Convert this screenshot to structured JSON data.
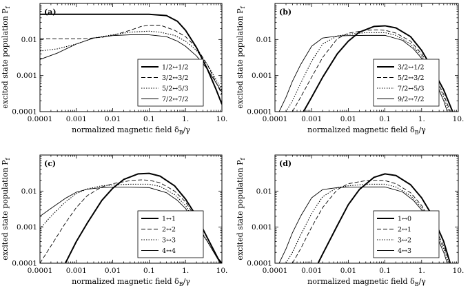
{
  "chart_data": [
    {
      "type": "line",
      "panel_label": "(a)",
      "xlabel_main": "normalized magnetic field δ",
      "xlabel_sub": "B",
      "xlabel_tail": "/γ",
      "ylabel_main": "excited state population P",
      "ylabel_sub": "f",
      "xscale": "log",
      "yscale": "log",
      "xlim": [
        0.0001,
        10
      ],
      "ylim": [
        0.0001,
        0.1
      ],
      "xticks": [
        "0.0001",
        "0.001",
        "0.01",
        "0.1",
        "1.",
        "10."
      ],
      "yticks": [
        "0.0001",
        "0.001",
        "0.01"
      ],
      "legend_position": "lower-center",
      "series": [
        {
          "name": "1/2↔1/2",
          "style": "thick-solid",
          "x": [
            0.0001,
            0.001,
            0.01,
            0.1,
            0.3,
            0.6,
            1,
            2,
            4,
            7,
            10
          ],
          "y": [
            0.05,
            0.05,
            0.05,
            0.05,
            0.046,
            0.032,
            0.018,
            0.006,
            0.0015,
            0.0004,
            0.00016
          ]
        },
        {
          "name": "3/2↔3/2",
          "style": "dashed",
          "x": [
            0.0001,
            0.001,
            0.002,
            0.005,
            0.01,
            0.03,
            0.06,
            0.1,
            0.2,
            0.5,
            1,
            2,
            4,
            10
          ],
          "y": [
            0.0105,
            0.0105,
            0.0107,
            0.0115,
            0.013,
            0.018,
            0.023,
            0.025,
            0.025,
            0.018,
            0.012,
            0.006,
            0.002,
            0.0003
          ]
        },
        {
          "name": "5/2↔5/3",
          "style": "dotted",
          "x": [
            0.0001,
            0.0003,
            0.001,
            0.003,
            0.01,
            0.03,
            0.1,
            0.2,
            0.5,
            1,
            2,
            4,
            10
          ],
          "y": [
            0.0048,
            0.0055,
            0.0075,
            0.011,
            0.0135,
            0.016,
            0.017,
            0.016,
            0.013,
            0.009,
            0.005,
            0.002,
            0.0004
          ]
        },
        {
          "name": "7/2↔7/2",
          "style": "thin-solid",
          "x": [
            0.0001,
            0.0003,
            0.001,
            0.003,
            0.01,
            0.03,
            0.1,
            0.3,
            0.6,
            1,
            2,
            4,
            10
          ],
          "y": [
            0.0028,
            0.0042,
            0.0075,
            0.011,
            0.0128,
            0.0135,
            0.0135,
            0.012,
            0.009,
            0.0065,
            0.0035,
            0.0015,
            0.00035
          ]
        }
      ]
    },
    {
      "type": "line",
      "panel_label": "(b)",
      "xlabel_main": "normalized magnetic field δ",
      "xlabel_sub": "B",
      "xlabel_tail": "/γ",
      "ylabel_main": "excited state population P",
      "ylabel_sub": "f",
      "xscale": "log",
      "yscale": "log",
      "xlim": [
        0.0001,
        10
      ],
      "ylim": [
        0.0001,
        0.1
      ],
      "xticks": [
        "0.0001",
        "0.001",
        "0.01",
        "0.1",
        "1.",
        "10."
      ],
      "yticks": [
        "0.0001",
        "0.001",
        "0.01"
      ],
      "legend_position": "lower-center",
      "series": [
        {
          "name": "3/2↔1/2",
          "style": "thick-solid",
          "x": [
            0.0006,
            0.001,
            0.002,
            0.005,
            0.01,
            0.02,
            0.05,
            0.1,
            0.2,
            0.5,
            1,
            2,
            4,
            7
          ],
          "y": [
            0.0001,
            0.00025,
            0.0009,
            0.004,
            0.009,
            0.016,
            0.023,
            0.024,
            0.021,
            0.012,
            0.005,
            0.0015,
            0.0004,
            0.0001
          ]
        },
        {
          "name": "5/2↔3/2",
          "style": "dashed",
          "x": [
            0.0003,
            0.0005,
            0.001,
            0.002,
            0.005,
            0.01,
            0.03,
            0.06,
            0.1,
            0.2,
            0.5,
            1,
            2,
            4,
            6
          ],
          "y": [
            0.0001,
            0.00025,
            0.0009,
            0.0032,
            0.0105,
            0.015,
            0.018,
            0.0185,
            0.018,
            0.015,
            0.009,
            0.004,
            0.0013,
            0.0003,
            0.0001
          ]
        },
        {
          "name": "7/2↔5/3",
          "style": "dotted",
          "x": [
            0.0002,
            0.0003,
            0.0005,
            0.001,
            0.002,
            0.005,
            0.01,
            0.03,
            0.1,
            0.2,
            0.5,
            1,
            2,
            4,
            5.5
          ],
          "y": [
            0.0001,
            0.0002,
            0.0006,
            0.0025,
            0.0075,
            0.0125,
            0.014,
            0.0155,
            0.0155,
            0.013,
            0.0075,
            0.0035,
            0.0011,
            0.00025,
            0.0001
          ]
        },
        {
          "name": "9/2↔7/2",
          "style": "thin-solid",
          "x": [
            0.00013,
            0.0002,
            0.0003,
            0.0005,
            0.001,
            0.002,
            0.005,
            0.01,
            0.03,
            0.1,
            0.3,
            0.6,
            1,
            2,
            4,
            5
          ],
          "y": [
            0.0001,
            0.00025,
            0.0007,
            0.002,
            0.0065,
            0.011,
            0.0125,
            0.0128,
            0.013,
            0.013,
            0.0095,
            0.0055,
            0.003,
            0.001,
            0.0002,
            0.0001
          ]
        }
      ]
    },
    {
      "type": "line",
      "panel_label": "(c)",
      "xlabel_main": "normalized magnetic field δ",
      "xlabel_sub": "B",
      "xlabel_tail": "/γ",
      "ylabel_main": "excited state population P",
      "ylabel_sub": "f",
      "xscale": "log",
      "yscale": "log",
      "xlim": [
        0.0001,
        10
      ],
      "ylim": [
        0.0001,
        0.1
      ],
      "xticks": [
        "0.0001",
        "0.001",
        "0.01",
        "0.1",
        "1.",
        "10."
      ],
      "yticks": [
        "0.0001",
        "0.001",
        "0.01"
      ],
      "legend_position": "lower-center",
      "series": [
        {
          "name": "1↔1",
          "style": "thick-solid",
          "x": [
            0.0005,
            0.001,
            0.002,
            0.005,
            0.01,
            0.02,
            0.05,
            0.1,
            0.2,
            0.5,
            1,
            2,
            4,
            8,
            10
          ],
          "y": [
            0.0001,
            0.0004,
            0.0013,
            0.0055,
            0.012,
            0.021,
            0.03,
            0.031,
            0.026,
            0.014,
            0.006,
            0.002,
            0.0005,
            0.00013,
            0.0001
          ]
        },
        {
          "name": "2↔2",
          "style": "dashed",
          "x": [
            0.0001,
            0.0002,
            0.0005,
            0.001,
            0.002,
            0.005,
            0.01,
            0.03,
            0.06,
            0.1,
            0.2,
            0.5,
            1,
            2,
            4,
            9
          ],
          "y": [
            0.0001,
            0.0003,
            0.0013,
            0.0035,
            0.0075,
            0.013,
            0.016,
            0.0195,
            0.0205,
            0.02,
            0.017,
            0.01,
            0.005,
            0.0017,
            0.0005,
            0.0001
          ]
        },
        {
          "name": "3↔3",
          "style": "dotted",
          "x": [
            0.0001,
            0.0002,
            0.0005,
            0.001,
            0.002,
            0.005,
            0.01,
            0.03,
            0.1,
            0.2,
            0.5,
            1,
            2,
            4,
            9
          ],
          "y": [
            0.0009,
            0.002,
            0.005,
            0.0085,
            0.0115,
            0.014,
            0.0148,
            0.0155,
            0.0155,
            0.0135,
            0.008,
            0.004,
            0.0013,
            0.0004,
            0.0001
          ]
        },
        {
          "name": "4↔4",
          "style": "thin-solid",
          "x": [
            0.0001,
            0.0002,
            0.0005,
            0.001,
            0.002,
            0.005,
            0.01,
            0.03,
            0.1,
            0.3,
            0.6,
            1,
            2,
            4,
            9
          ],
          "y": [
            0.002,
            0.0033,
            0.0063,
            0.0093,
            0.0113,
            0.0125,
            0.0128,
            0.0128,
            0.0125,
            0.009,
            0.0055,
            0.0033,
            0.0011,
            0.0004,
            0.0001
          ]
        }
      ]
    },
    {
      "type": "line",
      "panel_label": "(d)",
      "xlabel_main": "normalized magnetic field δ",
      "xlabel_sub": "B",
      "xlabel_tail": "/γ",
      "ylabel_main": "excited state population P",
      "ylabel_sub": "f",
      "xscale": "log",
      "yscale": "log",
      "xlim": [
        0.0001,
        10
      ],
      "ylim": [
        0.0001,
        0.1
      ],
      "xticks": [
        "0.0001",
        "0.001",
        "0.01",
        "0.1",
        "1.",
        "10."
      ],
      "yticks": [
        "0.0001",
        "0.001",
        "0.01"
      ],
      "legend_position": "lower-center",
      "series": [
        {
          "name": "1↔0",
          "style": "thick-solid",
          "x": [
            0.0015,
            0.002,
            0.005,
            0.01,
            0.02,
            0.05,
            0.1,
            0.2,
            0.5,
            1,
            2,
            4,
            6
          ],
          "y": [
            0.0001,
            0.00018,
            0.0011,
            0.0042,
            0.011,
            0.024,
            0.03,
            0.027,
            0.015,
            0.0065,
            0.002,
            0.0004,
            0.0001
          ]
        },
        {
          "name": "2↔1",
          "style": "dashed",
          "x": [
            0.0003,
            0.0005,
            0.001,
            0.002,
            0.005,
            0.01,
            0.03,
            0.06,
            0.1,
            0.2,
            0.5,
            1,
            2,
            4,
            6
          ],
          "y": [
            0.0001,
            0.00025,
            0.001,
            0.0035,
            0.011,
            0.016,
            0.0195,
            0.02,
            0.0195,
            0.016,
            0.009,
            0.004,
            0.0013,
            0.0003,
            0.0001
          ]
        },
        {
          "name": "3↔2",
          "style": "dotted",
          "x": [
            0.0002,
            0.0003,
            0.0005,
            0.001,
            0.002,
            0.005,
            0.01,
            0.03,
            0.1,
            0.2,
            0.5,
            1,
            2,
            4,
            5.5
          ],
          "y": [
            0.0001,
            0.0002,
            0.0006,
            0.0024,
            0.007,
            0.0125,
            0.014,
            0.0155,
            0.0155,
            0.013,
            0.0075,
            0.0035,
            0.0011,
            0.00025,
            0.0001
          ]
        },
        {
          "name": "4↔3",
          "style": "thin-solid",
          "x": [
            0.00013,
            0.0002,
            0.0003,
            0.0005,
            0.001,
            0.002,
            0.005,
            0.01,
            0.03,
            0.1,
            0.3,
            0.6,
            1,
            2,
            4,
            5
          ],
          "y": [
            0.0001,
            0.00025,
            0.0007,
            0.002,
            0.0065,
            0.011,
            0.0125,
            0.0128,
            0.013,
            0.013,
            0.0095,
            0.0055,
            0.003,
            0.001,
            0.0002,
            0.0001
          ]
        }
      ]
    }
  ]
}
